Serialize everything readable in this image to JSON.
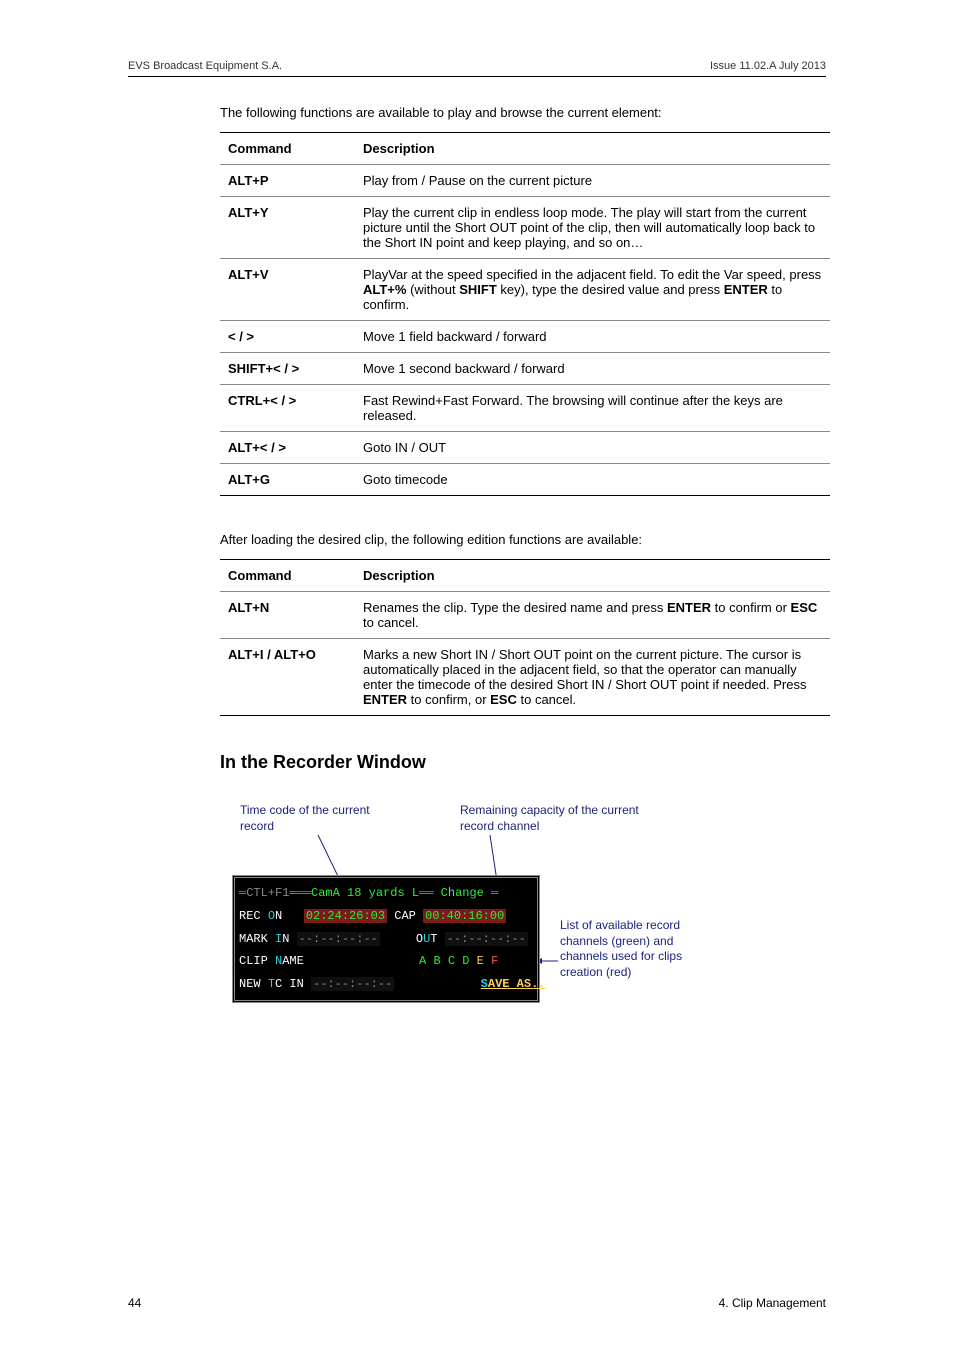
{
  "header": {
    "left": "EVS Broadcast Equipment S.A.",
    "right": "Issue 11.02.A  July 2013"
  },
  "intro1": "The following functions are available to play and browse the current element:",
  "table1": {
    "headers": [
      "Command",
      "Description"
    ],
    "rows": [
      {
        "cmd": "ALT+P",
        "desc": "Play from / Pause on the current picture"
      },
      {
        "cmd": "ALT+Y",
        "desc": "Play the current clip in endless loop mode. The play will start from the current picture until the Short OUT point of the clip, then will automatically loop back to the Short IN point and keep playing, and so on…"
      },
      {
        "cmd": "ALT+V",
        "desc_html": "PlayVar at the speed specified in the adjacent field. To edit the Var speed, press <b>ALT+%</b> (without <b>SHIFT</b> key), type the desired value and press <b>ENTER</b> to confirm."
      },
      {
        "cmd": "< / >",
        "desc": "Move 1 field backward / forward"
      },
      {
        "cmd": "SHIFT+< / >",
        "desc": "Move 1 second backward / forward"
      },
      {
        "cmd": "CTRL+< / >",
        "desc": "Fast Rewind+Fast Forward. The browsing will continue after the keys are released."
      },
      {
        "cmd": "ALT+< / >",
        "desc": "Goto IN / OUT"
      },
      {
        "cmd": "ALT+G",
        "desc": "Goto timecode"
      }
    ]
  },
  "intro2": "After loading the desired clip, the following edition functions are available:",
  "table2": {
    "headers": [
      "Command",
      "Description"
    ],
    "rows": [
      {
        "cmd": "ALT+N",
        "desc_html": "Renames the clip. Type the desired name and press <b>ENTER</b> to confirm or <b>ESC</b> to cancel."
      },
      {
        "cmd": "ALT+I / ALT+O",
        "desc_html": "Marks a new Short IN / Short OUT point on the current picture. The cursor is automatically placed in the adjacent field, so that the operator can manually enter the timecode of the desired Short IN / Short OUT point if needed. Press <b>ENTER</b> to confirm, or <b>ESC</b> to cancel."
      }
    ]
  },
  "subheading": "In the Recorder Window",
  "annotations": {
    "tc_label": "Time code of the current record",
    "cap_label": "Remaining capacity of the current record channel",
    "channels_label": "List of available record channels (green) and channels used for clips creation (red)"
  },
  "terminal": {
    "title_prefix": "CTL+F1",
    "title_mid": "CamA 18 yards L",
    "title_suffix_pre": "C",
    "title_suffix_post": "ange",
    "rec_label_pre": "REC ",
    "rec_label_hot": "O",
    "rec_label_post": "N",
    "rec_tc": "02:24:26:03",
    "cap_label": "CAP",
    "cap_val": "00:40:16:00",
    "markin_pre": "MARK ",
    "markin_hot": "I",
    "markin_post": "N",
    "placeholder": "--:--:--:--",
    "out_label_pre": "O",
    "out_label_hot": "U",
    "out_label_post": "T",
    "clipname_pre": "CLIP ",
    "clipname_hot": "N",
    "clipname_post": "AME",
    "channels_green": "A B C D",
    "channels_half1": " E",
    "channels_half2": " F",
    "newtc_pre": "NEW ",
    "newtc_hot": "T",
    "newtc_post": "C IN",
    "saveas_hot": "S",
    "saveas_rest": "AVE AS.."
  },
  "footer": {
    "page": "44",
    "section": "4. Clip Management"
  }
}
